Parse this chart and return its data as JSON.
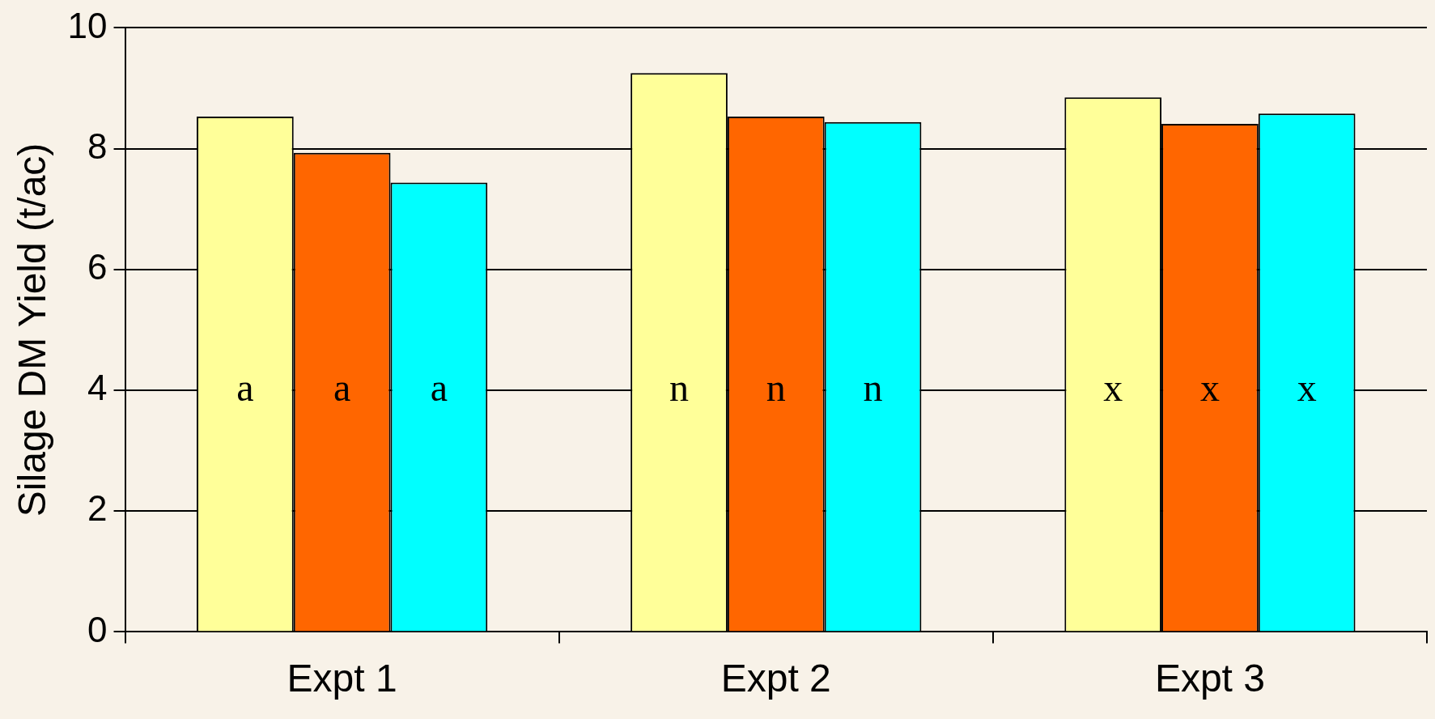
{
  "chart_data": {
    "type": "bar",
    "ylabel": "Silage DM Yield (t/ac)",
    "categories": [
      "Expt 1",
      "Expt 2",
      "Expt 3"
    ],
    "series": [
      {
        "color": "#ffff99",
        "values": [
          8.53,
          9.25,
          8.85
        ],
        "value_labels": [
          "a",
          "n",
          "x"
        ]
      },
      {
        "color": "#ff6600",
        "values": [
          7.93,
          8.53,
          8.41
        ],
        "value_labels": [
          "a",
          "n",
          "x"
        ]
      },
      {
        "color": "#00ffff",
        "values": [
          7.44,
          8.44,
          8.58
        ],
        "value_labels": [
          "a",
          "n",
          "x"
        ]
      }
    ],
    "ylim": [
      0,
      10
    ],
    "yticks": [
      0,
      2,
      4,
      6,
      8,
      10
    ],
    "grid": "y",
    "legend": false
  }
}
